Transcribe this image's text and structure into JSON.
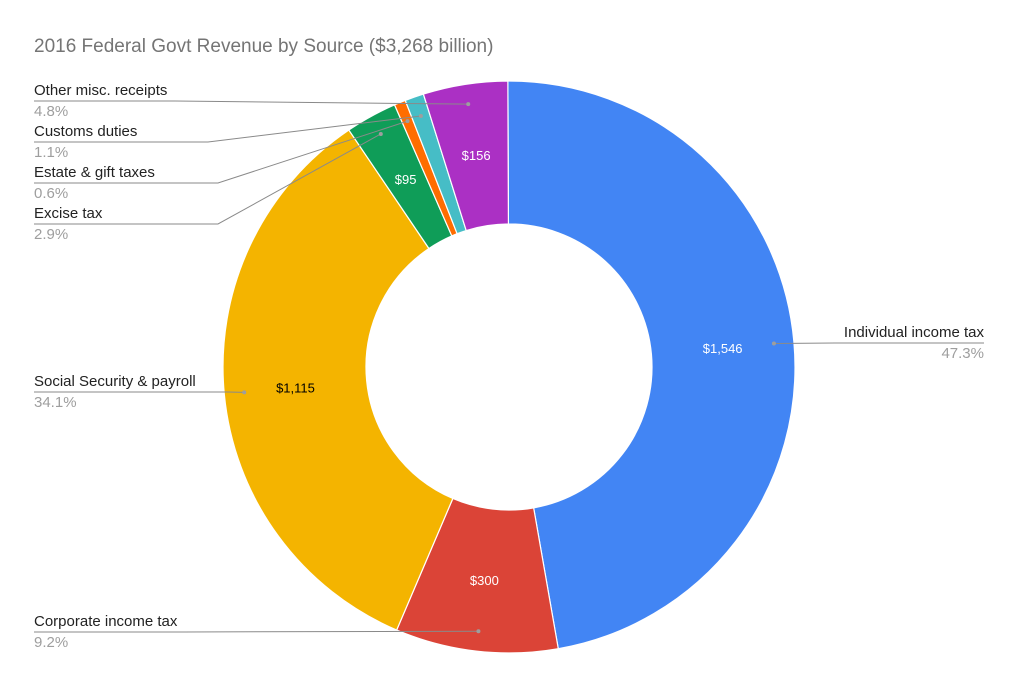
{
  "chart_data": {
    "type": "pie",
    "style": "donut",
    "title": "2016 Federal Govt Revenue by Source ($3,268 billion)",
    "slices": [
      {
        "label": "Individual income tax",
        "value": 1546,
        "value_label": "$1,546",
        "percent_label": "47.3%",
        "color": "#4285f4",
        "text_color": "#ffffff"
      },
      {
        "label": "Corporate income tax",
        "value": 300,
        "value_label": "$300",
        "percent_label": "9.2%",
        "color": "#db4437",
        "text_color": "#ffffff"
      },
      {
        "label": "Social Security & payroll",
        "value": 1115,
        "value_label": "$1,115",
        "percent_label": "34.1%",
        "color": "#f4b400",
        "text_color": "#000000"
      },
      {
        "label": "Excise tax",
        "value": 95,
        "value_label": "$95",
        "percent_label": "2.9%",
        "color": "#0f9d58",
        "text_color": "#ffffff"
      },
      {
        "label": "Estate & gift taxes",
        "value": 21,
        "value_label": "",
        "percent_label": "0.6%",
        "color": "#ff6d00",
        "text_color": "#ffffff"
      },
      {
        "label": "Customs duties",
        "value": 35,
        "value_label": "",
        "percent_label": "1.1%",
        "color": "#46bdc6",
        "text_color": "#ffffff"
      },
      {
        "label": "Other misc. receipts",
        "value": 156,
        "value_label": "$156",
        "percent_label": "4.8%",
        "color": "#ab30c4",
        "text_color": "#ffffff"
      }
    ]
  }
}
